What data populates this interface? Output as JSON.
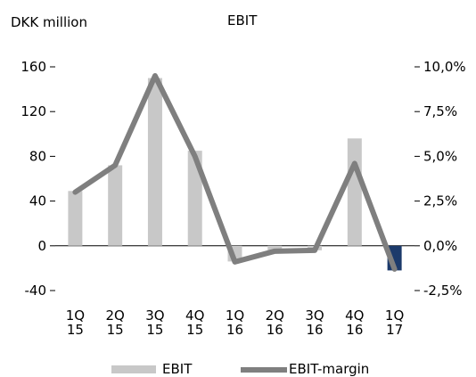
{
  "chart_data": {
    "type": "bar",
    "unit_label": "DKK million",
    "title": "EBIT",
    "categories": [
      [
        "1Q",
        "15"
      ],
      [
        "2Q",
        "15"
      ],
      [
        "3Q",
        "15"
      ],
      [
        "4Q",
        "15"
      ],
      [
        "1Q",
        "16"
      ],
      [
        "2Q",
        "16"
      ],
      [
        "3Q",
        "16"
      ],
      [
        "4Q",
        "16"
      ],
      [
        "1Q",
        "17"
      ]
    ],
    "series": [
      {
        "name": "EBIT",
        "type": "bar",
        "axis": "left",
        "values": [
          49,
          72,
          150,
          85,
          -14,
          -4,
          -4,
          96,
          -22
        ],
        "colors": [
          "#c8c8c8",
          "#c8c8c8",
          "#c8c8c8",
          "#c8c8c8",
          "#c8c8c8",
          "#c8c8c8",
          "#c8c8c8",
          "#c8c8c8",
          "#1c3a6b"
        ]
      },
      {
        "name": "EBIT-margin",
        "type": "line",
        "axis": "right",
        "values": [
          3.0,
          4.5,
          9.5,
          5.0,
          -0.9,
          -0.3,
          -0.25,
          4.6,
          -1.3
        ],
        "color": "#7f7f7f"
      }
    ],
    "y_left": {
      "min": -40,
      "max": 160,
      "ticks": [
        -40,
        0,
        40,
        80,
        120,
        160
      ]
    },
    "y_right": {
      "min": -2.5,
      "max": 10.0,
      "ticks": [
        "-2,5%",
        "0,0%",
        "2,5%",
        "5,0%",
        "7,5%",
        "10,0%"
      ]
    },
    "legend_position": "bottom",
    "grid": false
  }
}
